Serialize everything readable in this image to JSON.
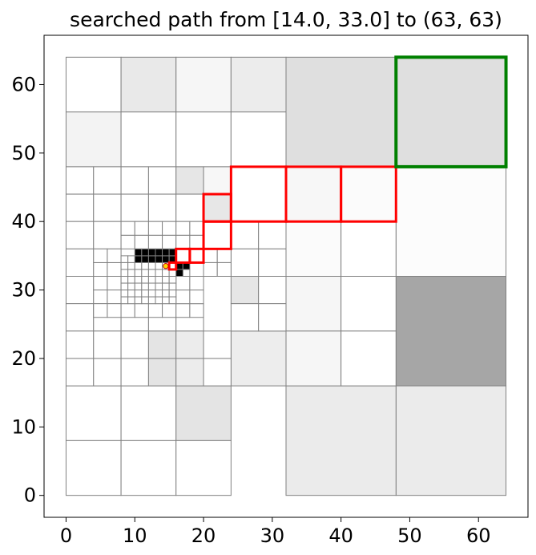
{
  "chart_data": {
    "type": "quadtree-path",
    "title": "searched path from [14.0, 33.0] to (63, 63)",
    "xlim": [
      -3.2,
      67.2
    ],
    "ylim": [
      -3.2,
      67.2
    ],
    "xticks": [
      0,
      10,
      20,
      30,
      40,
      50,
      60
    ],
    "yticks": [
      0,
      10,
      20,
      30,
      40,
      50,
      60
    ],
    "grid": false,
    "start": [
      14.0,
      33.0
    ],
    "goal": [
      63,
      63
    ],
    "colors": {
      "cell_edge": "#808080",
      "path": "#ff0000",
      "goal": "#008000",
      "start_marker": "#ffd700",
      "obstacle": "#000000"
    },
    "cells": [
      {
        "x": 0,
        "y": 56,
        "s": 8,
        "fill": "#ffffff"
      },
      {
        "x": 8,
        "y": 56,
        "s": 8,
        "fill": "#e9e9e9"
      },
      {
        "x": 16,
        "y": 56,
        "s": 8,
        "fill": "#f6f6f6"
      },
      {
        "x": 24,
        "y": 56,
        "s": 8,
        "fill": "#ececec"
      },
      {
        "x": 0,
        "y": 48,
        "s": 8,
        "fill": "#f3f3f3"
      },
      {
        "x": 8,
        "y": 48,
        "s": 8,
        "fill": "#ffffff"
      },
      {
        "x": 16,
        "y": 48,
        "s": 8,
        "fill": "#ffffff"
      },
      {
        "x": 24,
        "y": 48,
        "s": 8,
        "fill": "#ffffff"
      },
      {
        "x": 32,
        "y": 48,
        "s": 16,
        "fill": "#dfdfdf"
      },
      {
        "x": 48,
        "y": 48,
        "s": 16,
        "fill": "#dfdfdf"
      },
      {
        "x": 48,
        "y": 32,
        "s": 16,
        "fill": "#fcfcfc"
      },
      {
        "x": 48,
        "y": 16,
        "s": 16,
        "fill": "#a6a6a6"
      },
      {
        "x": 48,
        "y": 0,
        "s": 16,
        "fill": "#ebebeb"
      },
      {
        "x": 32,
        "y": 0,
        "s": 16,
        "fill": "#ebebeb"
      },
      {
        "x": 0,
        "y": 8,
        "s": 8,
        "fill": "#ffffff"
      },
      {
        "x": 8,
        "y": 8,
        "s": 8,
        "fill": "#ffffff"
      },
      {
        "x": 16,
        "y": 8,
        "s": 8,
        "fill": "#e4e4e4"
      },
      {
        "x": 0,
        "y": 0,
        "s": 8,
        "fill": "#ffffff"
      },
      {
        "x": 8,
        "y": 0,
        "s": 8,
        "fill": "#ffffff"
      },
      {
        "x": 16,
        "y": 0,
        "s": 8,
        "fill": "#ffffff"
      },
      {
        "x": 24,
        "y": 40,
        "s": 8,
        "fill": "#ffffff"
      },
      {
        "x": 32,
        "y": 40,
        "s": 8,
        "fill": "#f7f7f7"
      },
      {
        "x": 40,
        "y": 40,
        "s": 8,
        "fill": "#fbfbfb"
      },
      {
        "x": 32,
        "y": 32,
        "s": 8,
        "fill": "#fbfbfb"
      },
      {
        "x": 40,
        "y": 32,
        "s": 8,
        "fill": "#ffffff"
      },
      {
        "x": 32,
        "y": 24,
        "s": 8,
        "fill": "#f6f6f6"
      },
      {
        "x": 40,
        "y": 24,
        "s": 8,
        "fill": "#ffffff"
      },
      {
        "x": 32,
        "y": 16,
        "s": 8,
        "fill": "#f6f6f6"
      },
      {
        "x": 40,
        "y": 16,
        "s": 8,
        "fill": "#ffffff"
      },
      {
        "x": 24,
        "y": 16,
        "s": 8,
        "fill": "#ededed"
      },
      {
        "x": 0,
        "y": 44,
        "s": 4,
        "fill": "#ffffff"
      },
      {
        "x": 4,
        "y": 44,
        "s": 4,
        "fill": "#ffffff"
      },
      {
        "x": 8,
        "y": 44,
        "s": 4,
        "fill": "#ffffff"
      },
      {
        "x": 12,
        "y": 44,
        "s": 4,
        "fill": "#ffffff"
      },
      {
        "x": 16,
        "y": 44,
        "s": 4,
        "fill": "#e6e6e6"
      },
      {
        "x": 20,
        "y": 44,
        "s": 4,
        "fill": "#f7f7f7"
      },
      {
        "x": 0,
        "y": 40,
        "s": 4,
        "fill": "#ffffff"
      },
      {
        "x": 4,
        "y": 40,
        "s": 4,
        "fill": "#ffffff"
      },
      {
        "x": 8,
        "y": 40,
        "s": 4,
        "fill": "#ffffff"
      },
      {
        "x": 12,
        "y": 40,
        "s": 4,
        "fill": "#ffffff"
      },
      {
        "x": 16,
        "y": 40,
        "s": 4,
        "fill": "#ffffff"
      },
      {
        "x": 20,
        "y": 40,
        "s": 4,
        "fill": "#e7e7e7"
      },
      {
        "x": 0,
        "y": 36,
        "s": 4,
        "fill": "#ffffff"
      },
      {
        "x": 4,
        "y": 36,
        "s": 4,
        "fill": "#ffffff"
      },
      {
        "x": 20,
        "y": 36,
        "s": 4,
        "fill": "#ffffff"
      },
      {
        "x": 24,
        "y": 36,
        "s": 4,
        "fill": "#ffffff"
      },
      {
        "x": 28,
        "y": 36,
        "s": 4,
        "fill": "#ffffff"
      },
      {
        "x": 24,
        "y": 32,
        "s": 4,
        "fill": "#ffffff"
      },
      {
        "x": 28,
        "y": 32,
        "s": 4,
        "fill": "#ffffff"
      },
      {
        "x": 0,
        "y": 32,
        "s": 4,
        "fill": "#ffffff"
      },
      {
        "x": 0,
        "y": 28,
        "s": 4,
        "fill": "#ffffff"
      },
      {
        "x": 0,
        "y": 24,
        "s": 4,
        "fill": "#ffffff"
      },
      {
        "x": 4,
        "y": 24,
        "s": 4,
        "fill": "#ffffff"
      },
      {
        "x": 8,
        "y": 24,
        "s": 4,
        "fill": "#ffffff"
      },
      {
        "x": 12,
        "y": 24,
        "s": 4,
        "fill": "#ffffff"
      },
      {
        "x": 16,
        "y": 24,
        "s": 4,
        "fill": "#ffffff"
      },
      {
        "x": 24,
        "y": 28,
        "s": 4,
        "fill": "#e6e6e6"
      },
      {
        "x": 28,
        "y": 28,
        "s": 4,
        "fill": "#ffffff"
      },
      {
        "x": 24,
        "y": 24,
        "s": 4,
        "fill": "#ffffff"
      },
      {
        "x": 28,
        "y": 24,
        "s": 4,
        "fill": "#ffffff"
      },
      {
        "x": 0,
        "y": 20,
        "s": 4,
        "fill": "#ffffff"
      },
      {
        "x": 4,
        "y": 20,
        "s": 4,
        "fill": "#ffffff"
      },
      {
        "x": 8,
        "y": 20,
        "s": 4,
        "fill": "#ffffff"
      },
      {
        "x": 12,
        "y": 20,
        "s": 4,
        "fill": "#e4e4e4"
      },
      {
        "x": 16,
        "y": 20,
        "s": 4,
        "fill": "#ececec"
      },
      {
        "x": 20,
        "y": 20,
        "s": 4,
        "fill": "#ffffff"
      },
      {
        "x": 0,
        "y": 16,
        "s": 4,
        "fill": "#ffffff"
      },
      {
        "x": 4,
        "y": 16,
        "s": 4,
        "fill": "#ffffff"
      },
      {
        "x": 8,
        "y": 16,
        "s": 4,
        "fill": "#ffffff"
      },
      {
        "x": 12,
        "y": 16,
        "s": 4,
        "fill": "#e4e4e4"
      },
      {
        "x": 16,
        "y": 16,
        "s": 4,
        "fill": "#ececec"
      },
      {
        "x": 20,
        "y": 16,
        "s": 4,
        "fill": "#ffffff"
      },
      {
        "x": 4,
        "y": 32,
        "s": 2,
        "fill": "#ffffff"
      },
      {
        "x": 6,
        "y": 32,
        "s": 2,
        "fill": "#ffffff"
      },
      {
        "x": 4,
        "y": 30,
        "s": 2,
        "fill": "#ffffff"
      },
      {
        "x": 6,
        "y": 30,
        "s": 2,
        "fill": "#ffffff"
      },
      {
        "x": 4,
        "y": 28,
        "s": 2,
        "fill": "#ffffff"
      },
      {
        "x": 6,
        "y": 28,
        "s": 2,
        "fill": "#ffffff"
      },
      {
        "x": 4,
        "y": 26,
        "s": 2,
        "fill": "#ffffff"
      },
      {
        "x": 6,
        "y": 26,
        "s": 2,
        "fill": "#ffffff"
      },
      {
        "x": 4,
        "y": 34,
        "s": 2,
        "fill": "#ffffff"
      },
      {
        "x": 6,
        "y": 34,
        "s": 2,
        "fill": "#ffffff"
      },
      {
        "x": 8,
        "y": 36,
        "s": 2,
        "fill": "#ffffff"
      },
      {
        "x": 10,
        "y": 36,
        "s": 2,
        "fill": "#ffffff"
      },
      {
        "x": 12,
        "y": 36,
        "s": 2,
        "fill": "#ffffff"
      },
      {
        "x": 14,
        "y": 36,
        "s": 2,
        "fill": "#ffffff"
      },
      {
        "x": 16,
        "y": 36,
        "s": 2,
        "fill": "#ffffff"
      },
      {
        "x": 18,
        "y": 36,
        "s": 2,
        "fill": "#ffffff"
      },
      {
        "x": 8,
        "y": 38,
        "s": 2,
        "fill": "#ffffff"
      },
      {
        "x": 10,
        "y": 38,
        "s": 2,
        "fill": "#ffffff"
      },
      {
        "x": 12,
        "y": 38,
        "s": 2,
        "fill": "#ffffff"
      },
      {
        "x": 14,
        "y": 38,
        "s": 2,
        "fill": "#ffffff"
      },
      {
        "x": 16,
        "y": 38,
        "s": 2,
        "fill": "#ffffff"
      },
      {
        "x": 18,
        "y": 38,
        "s": 2,
        "fill": "#ffffff"
      },
      {
        "x": 8,
        "y": 26,
        "s": 2,
        "fill": "#ffffff"
      },
      {
        "x": 10,
        "y": 26,
        "s": 2,
        "fill": "#ffffff"
      },
      {
        "x": 12,
        "y": 26,
        "s": 2,
        "fill": "#ffffff"
      },
      {
        "x": 14,
        "y": 26,
        "s": 2,
        "fill": "#ffffff"
      },
      {
        "x": 16,
        "y": 26,
        "s": 2,
        "fill": "#ffffff"
      },
      {
        "x": 18,
        "y": 26,
        "s": 2,
        "fill": "#ffffff"
      },
      {
        "x": 16,
        "y": 34,
        "s": 2,
        "fill": "#ffffff"
      },
      {
        "x": 18,
        "y": 34,
        "s": 2,
        "fill": "#ffffff"
      },
      {
        "x": 16,
        "y": 28,
        "s": 2,
        "fill": "#ffffff"
      },
      {
        "x": 18,
        "y": 28,
        "s": 2,
        "fill": "#ffffff"
      },
      {
        "x": 16,
        "y": 30,
        "s": 2,
        "fill": "#ffffff"
      },
      {
        "x": 18,
        "y": 30,
        "s": 2,
        "fill": "#ffffff"
      },
      {
        "x": 20,
        "y": 34,
        "s": 2,
        "fill": "#ffffff"
      },
      {
        "x": 22,
        "y": 34,
        "s": 2,
        "fill": "#ffffff"
      },
      {
        "x": 20,
        "y": 32,
        "s": 2,
        "fill": "#ffffff"
      },
      {
        "x": 22,
        "y": 32,
        "s": 2,
        "fill": "#ffffff"
      },
      {
        "x": 8,
        "y": 34,
        "s": 1,
        "fill": "#ffffff"
      },
      {
        "x": 9,
        "y": 34,
        "s": 1,
        "fill": "#ffffff"
      },
      {
        "x": 8,
        "y": 33,
        "s": 1,
        "fill": "#ffffff"
      },
      {
        "x": 9,
        "y": 33,
        "s": 1,
        "fill": "#ffffff"
      },
      {
        "x": 8,
        "y": 32,
        "s": 1,
        "fill": "#ffffff"
      },
      {
        "x": 9,
        "y": 32,
        "s": 1,
        "fill": "#ffffff"
      },
      {
        "x": 8,
        "y": 31,
        "s": 1,
        "fill": "#ffffff"
      },
      {
        "x": 9,
        "y": 31,
        "s": 1,
        "fill": "#ffffff"
      },
      {
        "x": 8,
        "y": 30,
        "s": 1,
        "fill": "#ffffff"
      },
      {
        "x": 9,
        "y": 30,
        "s": 1,
        "fill": "#ffffff"
      },
      {
        "x": 8,
        "y": 29,
        "s": 1,
        "fill": "#ffffff"
      },
      {
        "x": 9,
        "y": 29,
        "s": 1,
        "fill": "#ffffff"
      },
      {
        "x": 8,
        "y": 28,
        "s": 1,
        "fill": "#ffffff"
      },
      {
        "x": 9,
        "y": 28,
        "s": 1,
        "fill": "#ffffff"
      },
      {
        "x": 10,
        "y": 33,
        "s": 1,
        "fill": "#ffffff"
      },
      {
        "x": 11,
        "y": 33,
        "s": 1,
        "fill": "#ffffff"
      },
      {
        "x": 12,
        "y": 33,
        "s": 1,
        "fill": "#ffffff"
      },
      {
        "x": 13,
        "y": 33,
        "s": 1,
        "fill": "#ffffff"
      },
      {
        "x": 14,
        "y": 33,
        "s": 1,
        "fill": "#ffffff"
      },
      {
        "x": 10,
        "y": 32,
        "s": 1,
        "fill": "#ffffff"
      },
      {
        "x": 11,
        "y": 32,
        "s": 1,
        "fill": "#ffffff"
      },
      {
        "x": 12,
        "y": 32,
        "s": 1,
        "fill": "#ffffff"
      },
      {
        "x": 13,
        "y": 32,
        "s": 1,
        "fill": "#ffffff"
      },
      {
        "x": 14,
        "y": 32,
        "s": 1,
        "fill": "#ffffff"
      },
      {
        "x": 15,
        "y": 32,
        "s": 1,
        "fill": "#ffffff"
      },
      {
        "x": 10,
        "y": 31,
        "s": 1,
        "fill": "#ffffff"
      },
      {
        "x": 11,
        "y": 31,
        "s": 1,
        "fill": "#ffffff"
      },
      {
        "x": 12,
        "y": 31,
        "s": 1,
        "fill": "#ffffff"
      },
      {
        "x": 13,
        "y": 31,
        "s": 1,
        "fill": "#ffffff"
      },
      {
        "x": 14,
        "y": 31,
        "s": 1,
        "fill": "#ffffff"
      },
      {
        "x": 15,
        "y": 31,
        "s": 1,
        "fill": "#ffffff"
      },
      {
        "x": 10,
        "y": 30,
        "s": 1,
        "fill": "#ffffff"
      },
      {
        "x": 11,
        "y": 30,
        "s": 1,
        "fill": "#ffffff"
      },
      {
        "x": 12,
        "y": 30,
        "s": 1,
        "fill": "#ffffff"
      },
      {
        "x": 13,
        "y": 30,
        "s": 1,
        "fill": "#ffffff"
      },
      {
        "x": 14,
        "y": 30,
        "s": 1,
        "fill": "#ffffff"
      },
      {
        "x": 15,
        "y": 30,
        "s": 1,
        "fill": "#ffffff"
      },
      {
        "x": 10,
        "y": 29,
        "s": 1,
        "fill": "#ffffff"
      },
      {
        "x": 11,
        "y": 29,
        "s": 1,
        "fill": "#ffffff"
      },
      {
        "x": 12,
        "y": 29,
        "s": 1,
        "fill": "#ffffff"
      },
      {
        "x": 13,
        "y": 29,
        "s": 1,
        "fill": "#ffffff"
      },
      {
        "x": 14,
        "y": 29,
        "s": 1,
        "fill": "#ffffff"
      },
      {
        "x": 15,
        "y": 29,
        "s": 1,
        "fill": "#ffffff"
      },
      {
        "x": 10,
        "y": 28,
        "s": 1,
        "fill": "#ffffff"
      },
      {
        "x": 11,
        "y": 28,
        "s": 1,
        "fill": "#ffffff"
      },
      {
        "x": 12,
        "y": 28,
        "s": 1,
        "fill": "#ffffff"
      },
      {
        "x": 13,
        "y": 28,
        "s": 1,
        "fill": "#ffffff"
      },
      {
        "x": 14,
        "y": 28,
        "s": 1,
        "fill": "#ffffff"
      },
      {
        "x": 15,
        "y": 28,
        "s": 1,
        "fill": "#ffffff"
      },
      {
        "x": 16,
        "y": 33,
        "s": 1,
        "fill": "#ffffff"
      },
      {
        "x": 16,
        "y": 32,
        "s": 1,
        "fill": "#ffffff"
      },
      {
        "x": 17,
        "y": 32,
        "s": 1,
        "fill": "#ffffff"
      },
      {
        "x": 10,
        "y": 34,
        "s": 1,
        "fill": "#000000"
      },
      {
        "x": 11,
        "y": 34,
        "s": 1,
        "fill": "#000000"
      },
      {
        "x": 12,
        "y": 34,
        "s": 1,
        "fill": "#000000"
      },
      {
        "x": 13,
        "y": 34,
        "s": 1,
        "fill": "#000000"
      },
      {
        "x": 14,
        "y": 34,
        "s": 1,
        "fill": "#000000"
      },
      {
        "x": 15,
        "y": 34,
        "s": 1,
        "fill": "#000000"
      },
      {
        "x": 10,
        "y": 35,
        "s": 1,
        "fill": "#000000"
      },
      {
        "x": 11,
        "y": 35,
        "s": 1,
        "fill": "#000000"
      },
      {
        "x": 12,
        "y": 35,
        "s": 1,
        "fill": "#000000"
      },
      {
        "x": 13,
        "y": 35,
        "s": 1,
        "fill": "#000000"
      },
      {
        "x": 14,
        "y": 35,
        "s": 1,
        "fill": "#000000"
      },
      {
        "x": 15,
        "y": 35,
        "s": 1,
        "fill": "#000000"
      },
      {
        "x": 16,
        "y": 33,
        "s": 1,
        "fill": "#000000"
      },
      {
        "x": 17,
        "y": 33,
        "s": 1,
        "fill": "#000000"
      },
      {
        "x": 16,
        "y": 32,
        "s": 1,
        "fill": "#000000"
      }
    ],
    "path_cells": [
      {
        "x": 15,
        "y": 33,
        "s": 1
      },
      {
        "x": 16,
        "y": 34,
        "s": 2
      },
      {
        "x": 18,
        "y": 34,
        "s": 2
      },
      {
        "x": 20,
        "y": 36,
        "s": 4
      },
      {
        "x": 20,
        "y": 40,
        "s": 4
      },
      {
        "x": 24,
        "y": 40,
        "s": 8
      },
      {
        "x": 32,
        "y": 40,
        "s": 8
      },
      {
        "x": 40,
        "y": 40,
        "s": 8
      }
    ],
    "goal_cell": {
      "x": 48,
      "y": 48,
      "s": 16
    }
  }
}
